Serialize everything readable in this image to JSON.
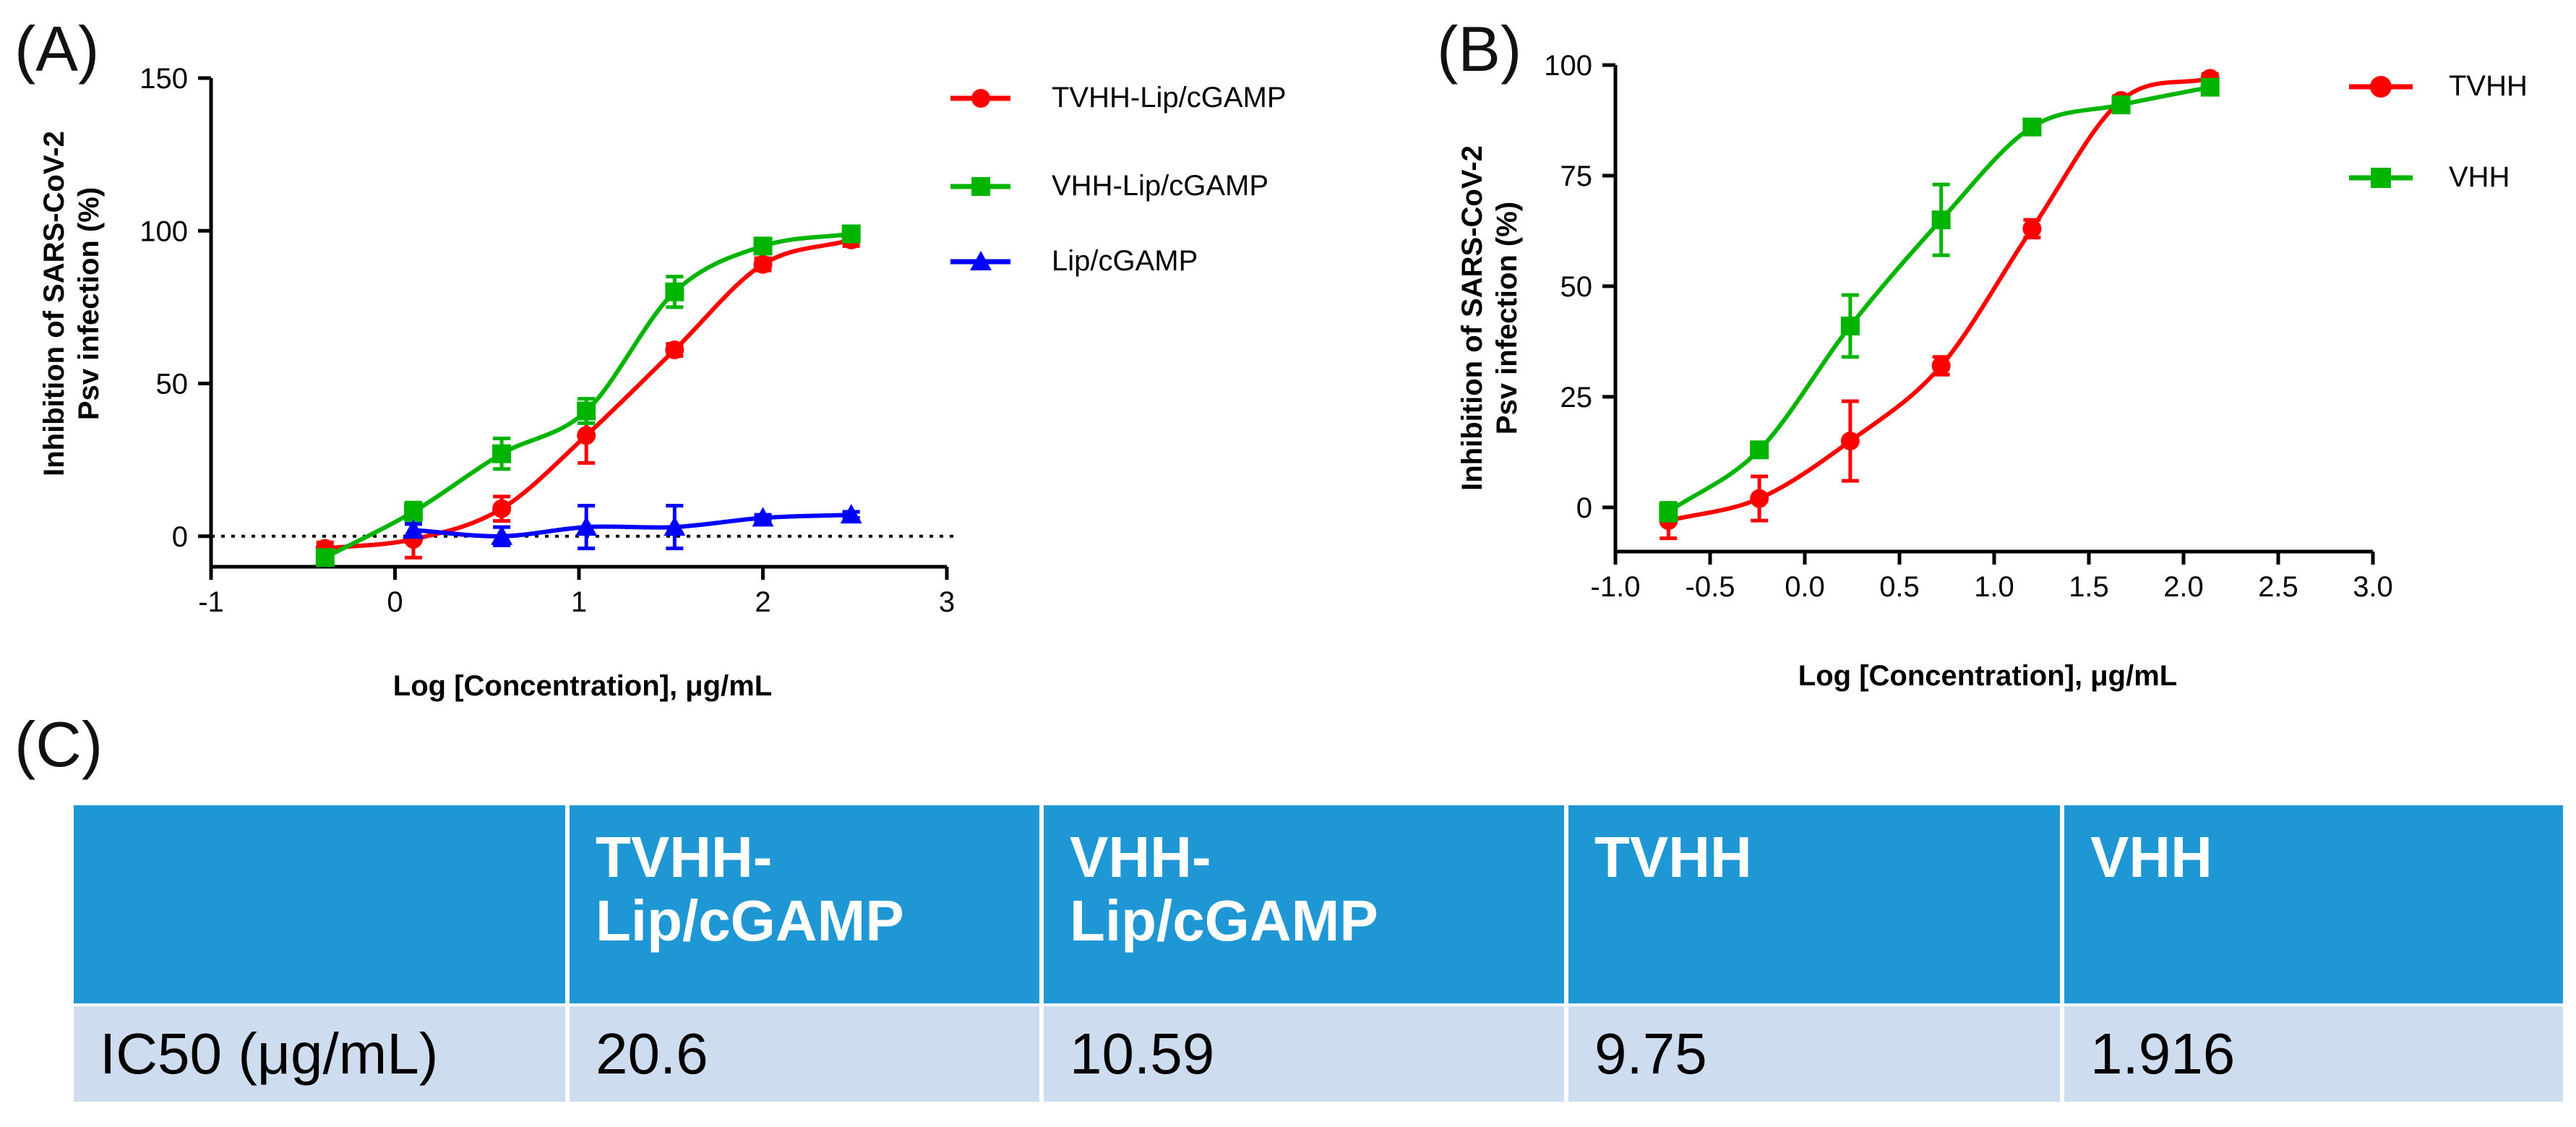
{
  "panels": {
    "a": "(A)",
    "b": "(B)",
    "c": "(C)"
  },
  "chart_data": [
    {
      "id": "A",
      "type": "scatter",
      "xlabel": "Log [Concentration], μg/mL",
      "ylabel": [
        "Inhibition of SARS-CoV-2",
        "Psv infection (%)"
      ],
      "xlim": [
        -1,
        3
      ],
      "ylim": [
        -10,
        150
      ],
      "xticks": [
        -1,
        0,
        1,
        2,
        3
      ],
      "yticks": [
        0,
        50,
        100,
        150
      ],
      "reference_line_y": 0,
      "series": [
        {
          "name": "TVHH-Lip/cGAMP",
          "color": "#ff0000",
          "marker": "circle",
          "x": [
            -0.38,
            0.1,
            0.58,
            1.04,
            1.52,
            2.0,
            2.48
          ],
          "y": [
            -4,
            -1,
            9,
            33,
            61,
            89,
            97
          ],
          "err": [
            2,
            6,
            4,
            9,
            2,
            2,
            2
          ]
        },
        {
          "name": "VHH-Lip/cGAMP",
          "color": "#00b400",
          "marker": "square",
          "x": [
            -0.38,
            0.1,
            0.58,
            1.04,
            1.52,
            2.0,
            2.48
          ],
          "y": [
            -7,
            8,
            27,
            41,
            80,
            95,
            99
          ],
          "err": [
            2,
            3,
            5,
            4,
            5,
            2,
            2
          ]
        },
        {
          "name": "Lip/cGAMP",
          "color": "#0000ff",
          "marker": "triangle",
          "x": [
            0.1,
            0.58,
            1.04,
            1.52,
            2.0,
            2.48
          ],
          "y": [
            2,
            0,
            3,
            3,
            6,
            7
          ],
          "err": [
            2,
            3,
            7,
            7,
            1,
            1
          ]
        }
      ]
    },
    {
      "id": "B",
      "type": "scatter",
      "xlabel": "Log [Concentration], μg/mL",
      "ylabel": [
        "Inhibition of SARS-CoV-2",
        "Psv infection (%)"
      ],
      "xlim": [
        -1.0,
        3.0
      ],
      "ylim": [
        -10,
        100
      ],
      "xticks": [
        "-1.0",
        "-0.5",
        "0.0",
        "0.5",
        "1.0",
        "1.5",
        "2.0",
        "2.5",
        "3.0"
      ],
      "yticks": [
        0,
        25,
        50,
        75,
        100
      ],
      "series": [
        {
          "name": "TVHH",
          "color": "#ff0000",
          "marker": "circle",
          "x": [
            -0.72,
            -0.24,
            0.24,
            0.72,
            1.2,
            1.67,
            2.14
          ],
          "y": [
            -3,
            2,
            15,
            32,
            63,
            92,
            97
          ],
          "err": [
            4,
            5,
            9,
            2,
            2,
            1,
            1
          ]
        },
        {
          "name": "VHH",
          "color": "#00b400",
          "marker": "square",
          "x": [
            -0.72,
            -0.24,
            0.24,
            0.72,
            1.2,
            1.67,
            2.14
          ],
          "y": [
            -1,
            13,
            41,
            65,
            86,
            91,
            95
          ],
          "err": [
            2,
            1,
            7,
            8,
            1,
            1,
            1
          ]
        }
      ]
    }
  ],
  "table": {
    "headers": [
      "",
      "TVHH-\nLip/cGAMP",
      "VHH-\nLip/cGAMP",
      "TVHH",
      "VHH"
    ],
    "rows": [
      {
        "label": "IC50 (μg/mL)",
        "values": [
          "20.6",
          "10.59",
          "9.75",
          "1.916"
        ]
      }
    ]
  }
}
